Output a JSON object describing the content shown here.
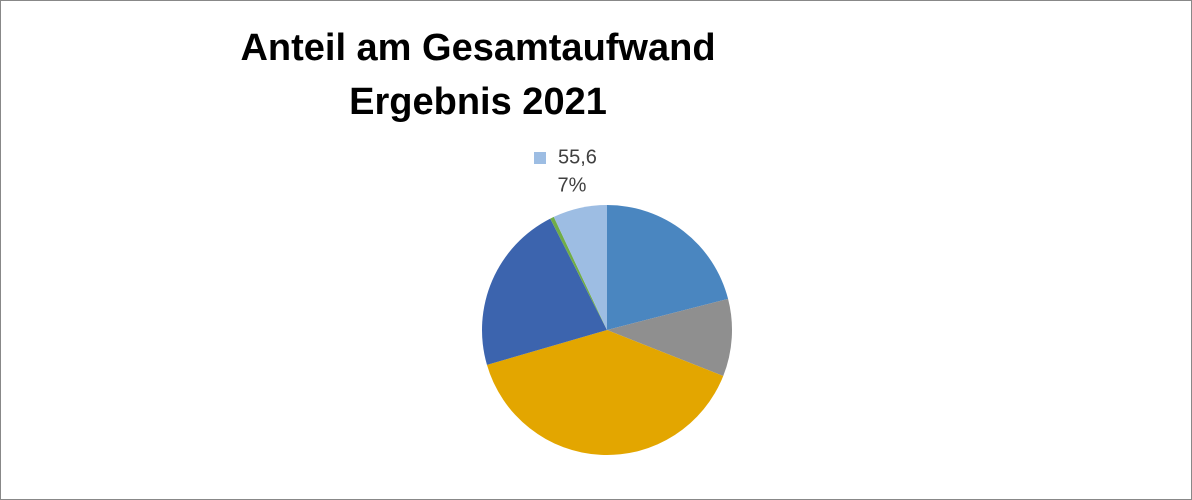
{
  "chart_data": {
    "type": "pie",
    "title": [
      "Anteil am Gesamtaufwand",
      "Ergebnis 2021"
    ],
    "categories": [
      null,
      null,
      null,
      null,
      null,
      "55,6"
    ],
    "values": [
      21,
      10,
      39.5,
      22,
      0.5,
      7
    ],
    "value_labels": [
      null,
      null,
      null,
      null,
      null,
      "7%"
    ],
    "colors": [
      "#4a86c0",
      "#8f8f8f",
      "#e3a600",
      "#3c64ae",
      "#70ad47",
      "#9dbde3"
    ]
  }
}
